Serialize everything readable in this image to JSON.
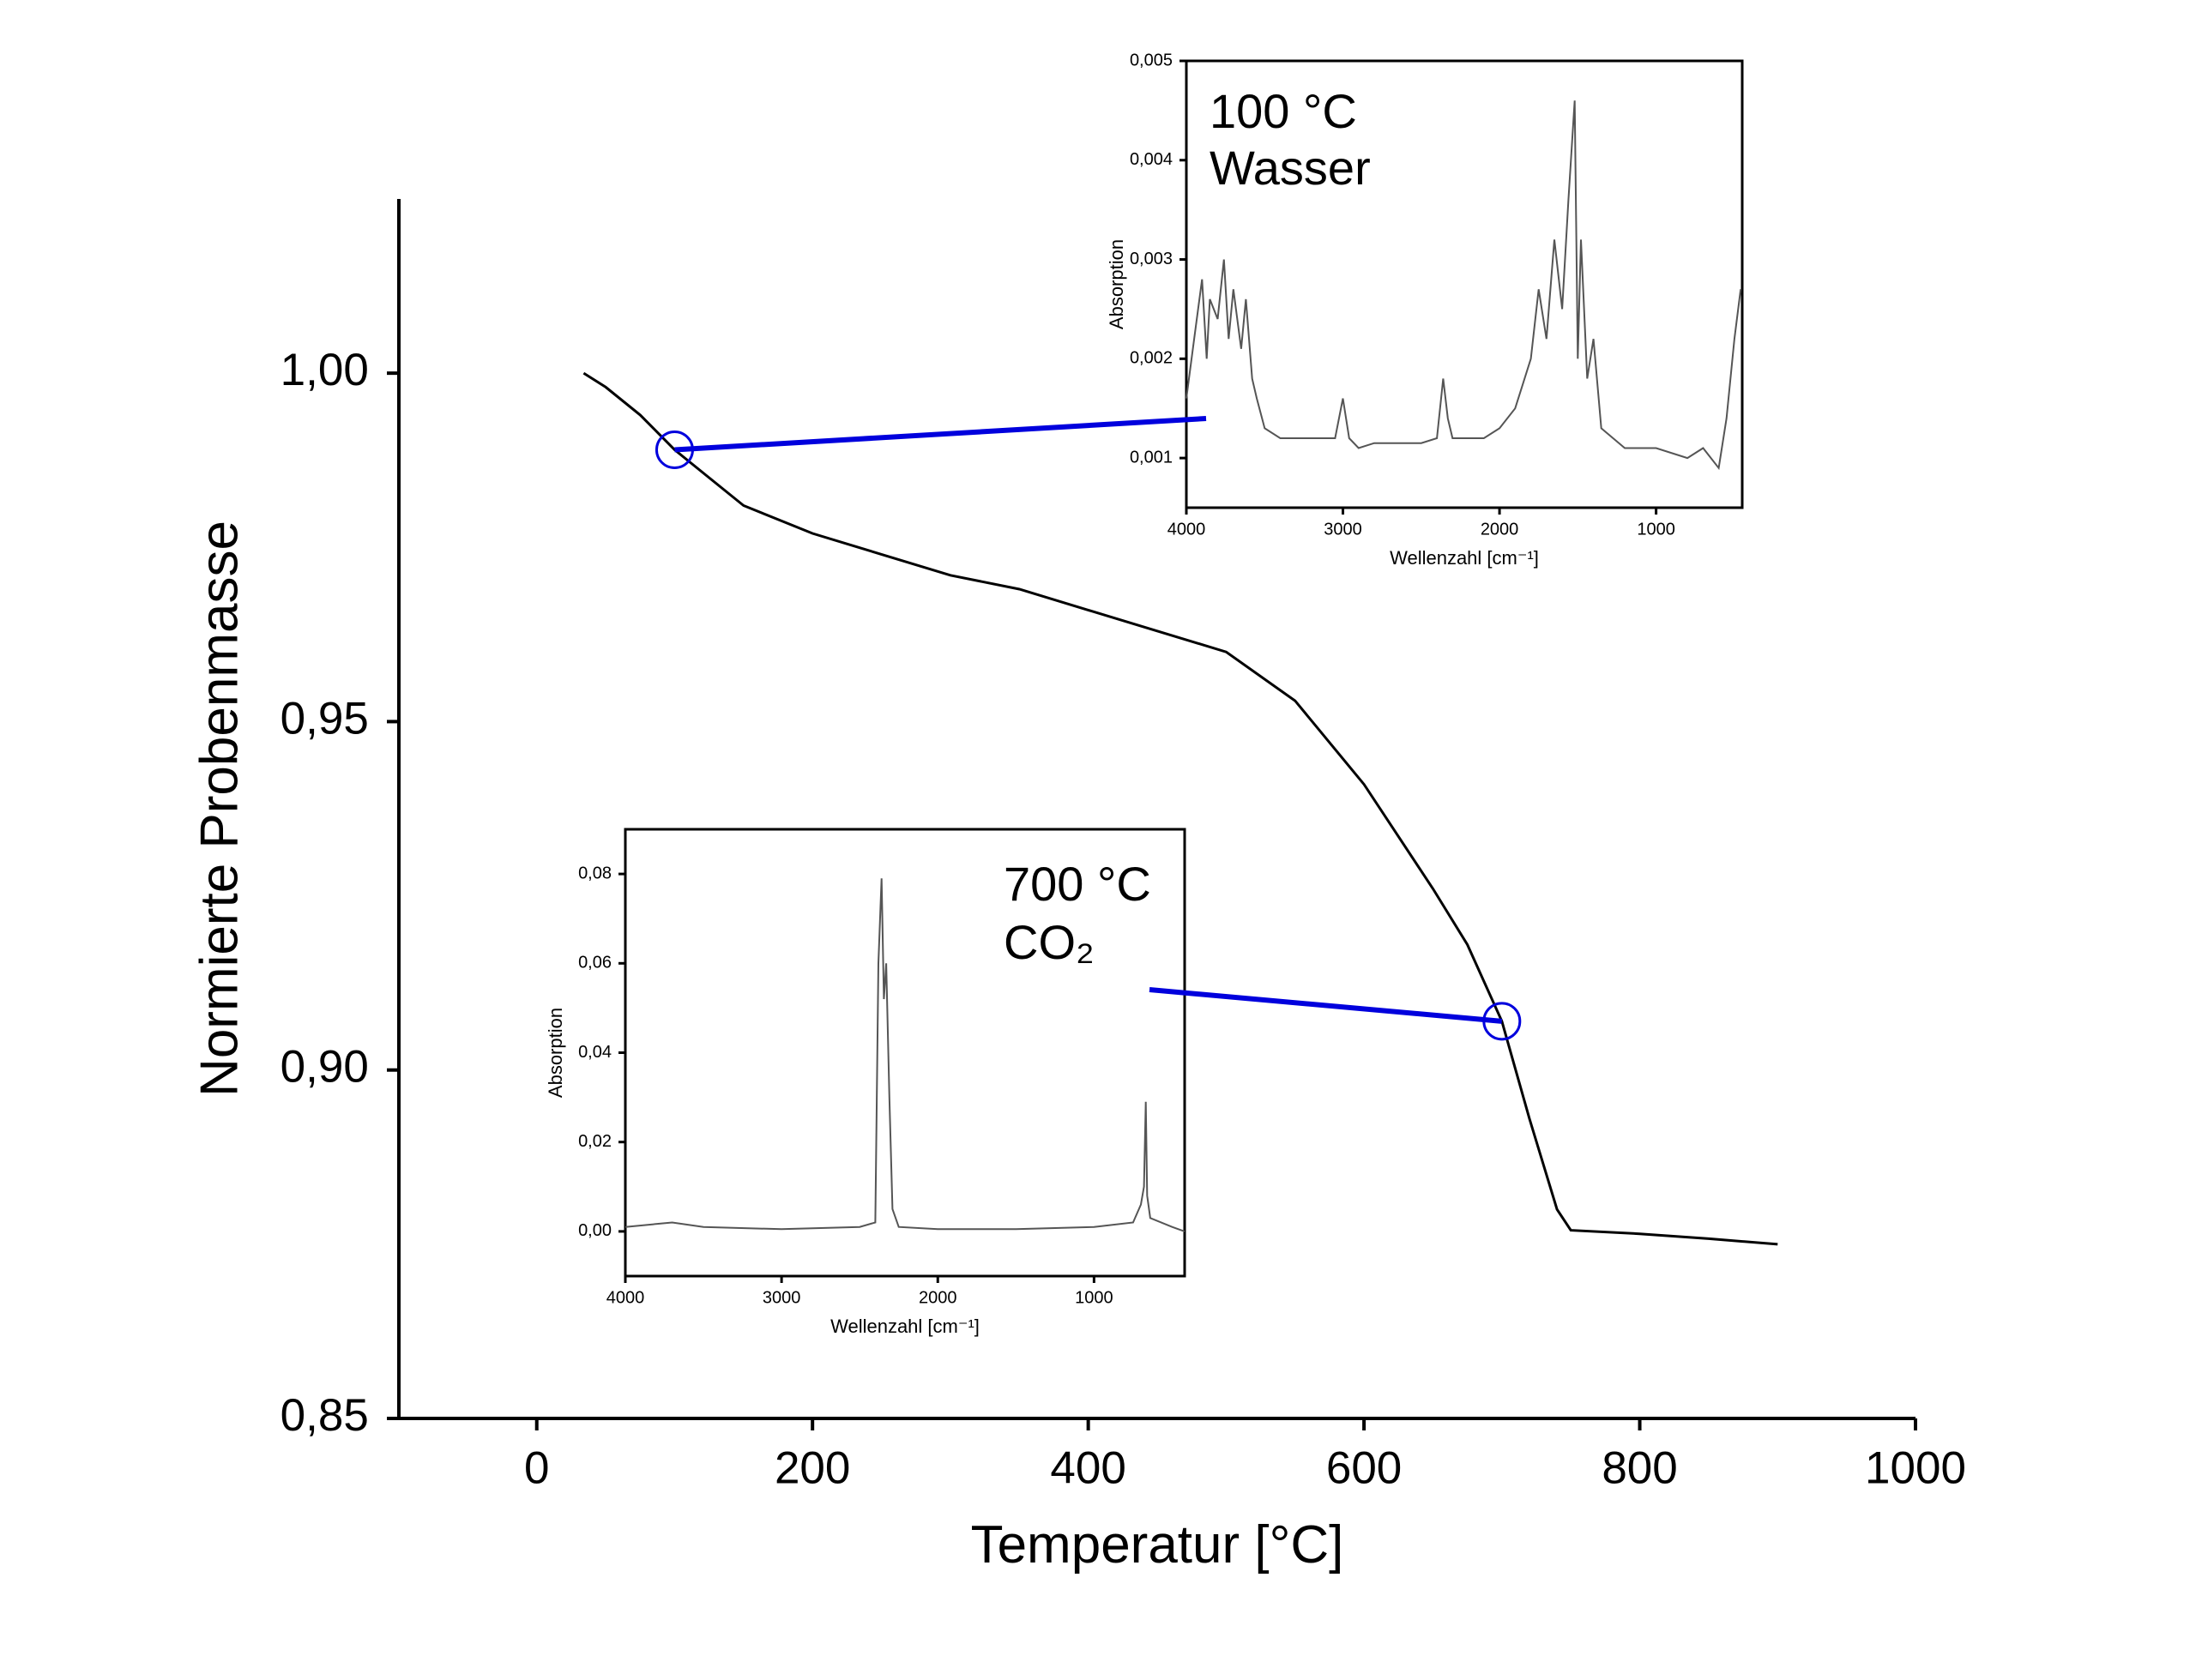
{
  "chart_data": [
    {
      "type": "line",
      "xlabel": "Temperatur [°C]",
      "ylabel": "Normierte Probenmasse",
      "x": [
        34,
        50,
        75,
        100,
        125,
        150,
        200,
        250,
        300,
        350,
        400,
        450,
        500,
        550,
        600,
        650,
        675,
        700,
        720,
        740,
        750,
        800,
        850,
        900
      ],
      "series": [
        {
          "color": "#000000",
          "values": [
            1.0,
            0.998,
            0.994,
            0.989,
            0.985,
            0.981,
            0.977,
            0.974,
            0.971,
            0.969,
            0.966,
            0.963,
            0.96,
            0.953,
            0.941,
            0.926,
            0.918,
            0.907,
            0.893,
            0.88,
            0.877,
            0.8765,
            0.8758,
            0.875
          ]
        }
      ],
      "xlim": [
        -100,
        1000
      ],
      "xticks": [
        0,
        200,
        400,
        600,
        800,
        1000
      ],
      "ylim": [
        0.85,
        1.025
      ],
      "yticks": [
        {
          "value": 0.85,
          "label": "0,85"
        },
        {
          "value": 0.9,
          "label": "0,90"
        },
        {
          "value": 0.95,
          "label": "0,95"
        },
        {
          "value": 1.0,
          "label": "1,00"
        }
      ]
    },
    {
      "type": "line",
      "xlabel": "Wellenzahl [cm⁻¹]",
      "ylabel": "Absorption",
      "annotation": [
        "100 °C",
        "Wasser"
      ],
      "x": [
        4000,
        3950,
        3900,
        3870,
        3850,
        3800,
        3760,
        3730,
        3700,
        3650,
        3620,
        3580,
        3550,
        3500,
        3400,
        3200,
        3050,
        3000,
        2960,
        2900,
        2800,
        2500,
        2400,
        2360,
        2330,
        2300,
        2100,
        2000,
        1900,
        1800,
        1750,
        1700,
        1650,
        1600,
        1560,
        1520,
        1500,
        1480,
        1440,
        1400,
        1350,
        1200,
        1000,
        800,
        700,
        600,
        550,
        500,
        460
      ],
      "series": [
        {
          "color": "#555555",
          "values": [
            0.0016,
            0.0022,
            0.0028,
            0.002,
            0.0026,
            0.0024,
            0.003,
            0.0022,
            0.0027,
            0.0021,
            0.0026,
            0.0018,
            0.0016,
            0.0013,
            0.0012,
            0.0012,
            0.0012,
            0.0016,
            0.0012,
            0.0011,
            0.00115,
            0.00115,
            0.0012,
            0.0018,
            0.0014,
            0.0012,
            0.0012,
            0.0013,
            0.0015,
            0.002,
            0.0027,
            0.0022,
            0.0032,
            0.0025,
            0.0036,
            0.0046,
            0.002,
            0.0032,
            0.0018,
            0.0022,
            0.0013,
            0.0011,
            0.0011,
            0.001,
            0.0011,
            0.0009,
            0.0014,
            0.0022,
            0.0027
          ]
        }
      ],
      "xlim": [
        4000,
        450
      ],
      "xticks": [
        4000,
        3000,
        2000,
        1000
      ],
      "ylim": [
        0.0005,
        0.005
      ],
      "yticks": [
        {
          "value": 0.001,
          "label": "0,001"
        },
        {
          "value": 0.002,
          "label": "0,002"
        },
        {
          "value": 0.003,
          "label": "0,003"
        },
        {
          "value": 0.004,
          "label": "0,004"
        },
        {
          "value": 0.005,
          "label": "0,005"
        }
      ]
    },
    {
      "type": "line",
      "xlabel": "Wellenzahl [cm⁻¹]",
      "ylabel": "Absorption",
      "annotation": [
        "700 °C",
        "CO₂"
      ],
      "x": [
        4000,
        3700,
        3500,
        3000,
        2500,
        2400,
        2380,
        2360,
        2345,
        2330,
        2310,
        2290,
        2250,
        2000,
        1500,
        1000,
        750,
        700,
        680,
        669,
        660,
        640,
        500,
        420
      ],
      "series": [
        {
          "color": "#555555",
          "values": [
            0.001,
            0.002,
            0.001,
            0.0005,
            0.001,
            0.002,
            0.06,
            0.079,
            0.052,
            0.06,
            0.03,
            0.005,
            0.001,
            0.0005,
            0.0005,
            0.001,
            0.002,
            0.006,
            0.01,
            0.029,
            0.008,
            0.003,
            0.001,
            0
          ]
        }
      ],
      "xlim": [
        4000,
        420
      ],
      "xticks": [
        4000,
        3000,
        2000,
        1000
      ],
      "ylim": [
        -0.01,
        0.09
      ],
      "yticks": [
        {
          "value": 0,
          "label": "0,00"
        },
        {
          "value": 0.02,
          "label": "0,02"
        },
        {
          "value": 0.04,
          "label": "0,04"
        },
        {
          "value": 0.06,
          "label": "0,06"
        },
        {
          "value": 0.08,
          "label": "0,08"
        }
      ]
    }
  ]
}
